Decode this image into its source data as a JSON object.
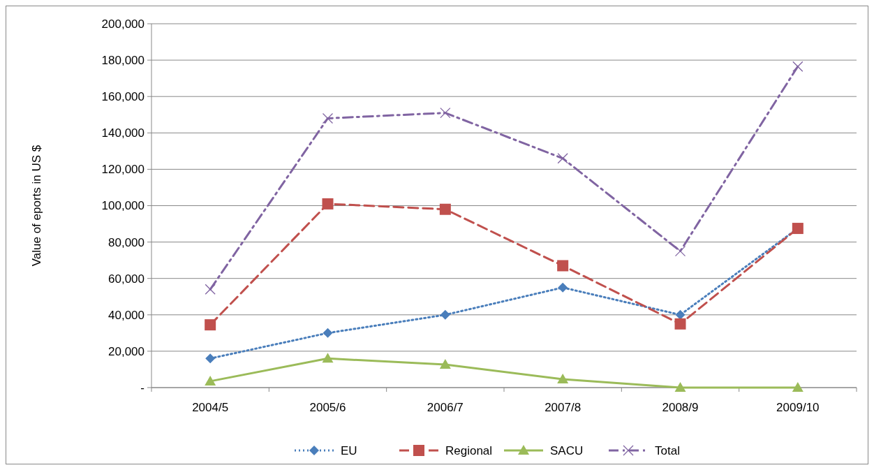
{
  "chart_data": {
    "type": "line",
    "ylabel": "Value of eports in  US $",
    "categories": [
      "2004/5",
      "2005/6",
      "2006/7",
      "2007/8",
      "2008/9",
      "2009/10"
    ],
    "series": [
      {
        "name": "EU",
        "color": "#4a7ebb",
        "marker": "diamond",
        "line_style": "dotted",
        "values": [
          16000,
          30000,
          40000,
          55000,
          40000,
          87500
        ]
      },
      {
        "name": "Regional",
        "color": "#c0504d",
        "marker": "square",
        "line_style": "dashed",
        "values": [
          34500,
          101000,
          98000,
          67000,
          35000,
          87500
        ]
      },
      {
        "name": "SACU",
        "color": "#9bbb59",
        "marker": "triangle",
        "line_style": "solid",
        "values": [
          3500,
          16000,
          12700,
          4600,
          0,
          0
        ]
      },
      {
        "name": "Total",
        "color": "#8064a2",
        "marker": "cross",
        "line_style": "dashdot",
        "values": [
          54000,
          148000,
          151000,
          126000,
          75000,
          176500
        ]
      }
    ],
    "ylim": [
      0,
      200000
    ],
    "yticks": [
      {
        "value": 0,
        "label": "-"
      },
      {
        "value": 20000,
        "label": "20,000"
      },
      {
        "value": 40000,
        "label": "40,000"
      },
      {
        "value": 60000,
        "label": "60,000"
      },
      {
        "value": 80000,
        "label": "80,000"
      },
      {
        "value": 100000,
        "label": "100,000"
      },
      {
        "value": 120000,
        "label": "120,000"
      },
      {
        "value": 140000,
        "label": "140,000"
      },
      {
        "value": 160000,
        "label": "160,000"
      },
      {
        "value": 180000,
        "label": "180,000"
      },
      {
        "value": 200000,
        "label": "200,000"
      }
    ],
    "grid": "y",
    "legend": "bottom"
  }
}
